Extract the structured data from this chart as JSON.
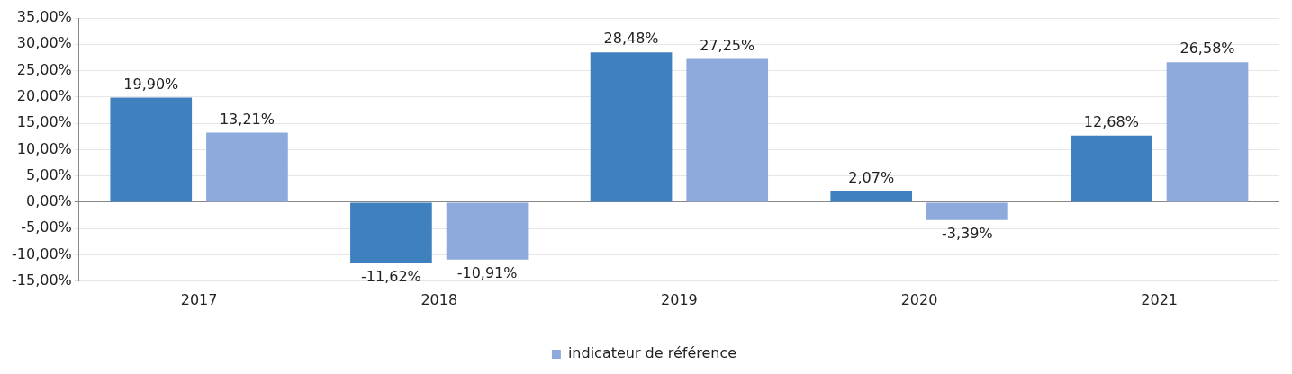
{
  "chart_data": {
    "type": "bar",
    "categories": [
      "2017",
      "2018",
      "2019",
      "2020",
      "2021"
    ],
    "series": [
      {
        "color": "#3f80bf",
        "values": [
          19.9,
          -11.62,
          28.48,
          2.07,
          12.68
        ],
        "value_labels": [
          "19,90%",
          "-11,62%",
          "28,48%",
          "2,07%",
          "12,68%"
        ]
      },
      {
        "name": "indicateur de référence",
        "color": "#8eaadc",
        "values": [
          13.21,
          -10.91,
          27.25,
          -3.39,
          26.58
        ],
        "value_labels": [
          "13,21%",
          "-10,91%",
          "27,25%",
          "-3,39%",
          "26,58%"
        ]
      }
    ],
    "ylim": [
      -15,
      35
    ],
    "yticks": [
      {
        "value": -15,
        "label": "-15,00%"
      },
      {
        "value": -10,
        "label": "-10,00%"
      },
      {
        "value": -5,
        "label": "-5,00%"
      },
      {
        "value": 0,
        "label": "0,00%"
      },
      {
        "value": 5,
        "label": "5,00%"
      },
      {
        "value": 10,
        "label": "10,00%"
      },
      {
        "value": 15,
        "label": "15,00%"
      },
      {
        "value": 20,
        "label": "20,00%"
      },
      {
        "value": 25,
        "label": "25,00%"
      },
      {
        "value": 30,
        "label": "30,00%"
      },
      {
        "value": 35,
        "label": "35,00%"
      }
    ],
    "grid": "y",
    "legend": "bottom"
  }
}
